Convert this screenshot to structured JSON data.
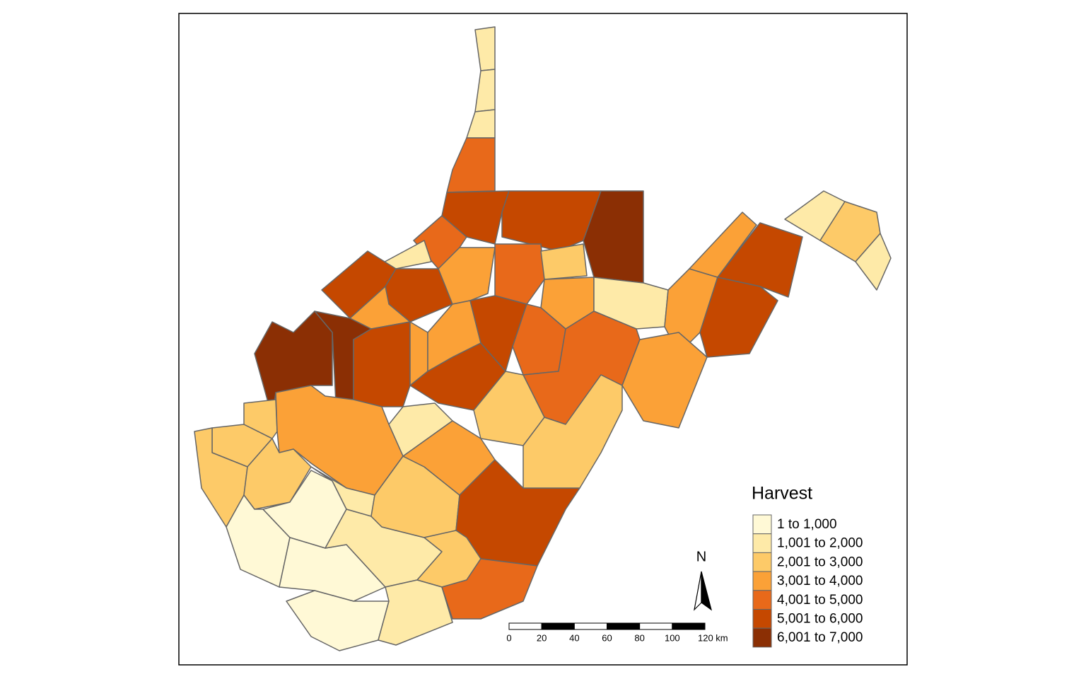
{
  "legend": {
    "title": "Harvest",
    "items": [
      {
        "label": "1 to 1,000",
        "color": "#fff9d6"
      },
      {
        "label": "1,001 to 2,000",
        "color": "#feeaa8"
      },
      {
        "label": "2,001 to 3,000",
        "color": "#fdca68"
      },
      {
        "label": "3,001 to 4,000",
        "color": "#fba137"
      },
      {
        "label": "4,001 to 5,000",
        "color": "#e8691a"
      },
      {
        "label": "5,001 to 6,000",
        "color": "#c54800"
      },
      {
        "label": "6,001 to 7,000",
        "color": "#8b2f04"
      }
    ]
  },
  "scale_bar": {
    "labels": [
      "0",
      "20",
      "40",
      "60",
      "80",
      "100",
      "120 km"
    ]
  },
  "north_arrow": {
    "label": "N"
  }
}
